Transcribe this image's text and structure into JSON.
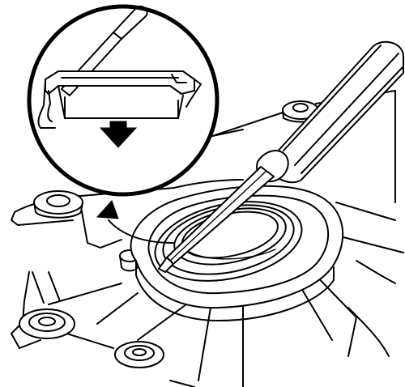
{
  "figure": {
    "parts": [
      "engine-cover-housing",
      "crankshaft-seal-bore",
      "oil-seal",
      "screwdriver",
      "detail-magnifier",
      "removal-direction-arrow"
    ],
    "colors": {
      "line": "#000000",
      "background": "#ffffff"
    }
  }
}
